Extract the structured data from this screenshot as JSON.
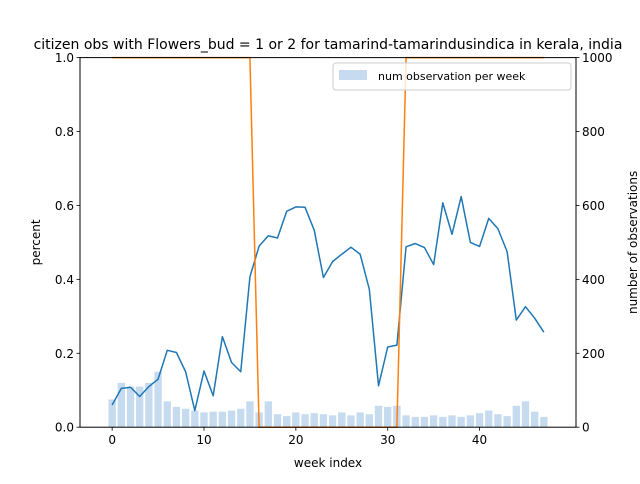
{
  "chart_data": {
    "type": "bar+line",
    "title": "citizen obs with Flowers_bud = 1 or 2 for tamarind-tamarindusindica in kerala, india",
    "xlabel": "week index",
    "ylabel": "percent",
    "y2label": "number of observations",
    "xlim": [
      -3.5,
      50.5
    ],
    "ylim": [
      0,
      1.0
    ],
    "y2lim": [
      0,
      1000
    ],
    "xticks": [
      0,
      10,
      20,
      30,
      40
    ],
    "yticks": [
      0.0,
      0.2,
      0.4,
      0.6,
      0.8,
      1.0
    ],
    "y2ticks": [
      0,
      200,
      400,
      600,
      800,
      1000
    ],
    "legend": {
      "placement": "top-right",
      "entries": [
        "num observation per week"
      ]
    },
    "grid": false,
    "colors": {
      "bars": "#c6dbef",
      "percent_line": "#1f77b4",
      "flag_line": "#ff7f0e"
    },
    "weeks": [
      0,
      1,
      2,
      3,
      4,
      5,
      6,
      7,
      8,
      9,
      10,
      11,
      12,
      13,
      14,
      15,
      16,
      17,
      18,
      19,
      20,
      21,
      22,
      23,
      24,
      25,
      26,
      27,
      28,
      29,
      30,
      31,
      32,
      33,
      34,
      35,
      36,
      37,
      38,
      39,
      40,
      41,
      42,
      43,
      44,
      45,
      46,
      47
    ],
    "series": [
      {
        "name": "num observation per week",
        "kind": "bar",
        "axis": "right",
        "values": [
          75,
          120,
          110,
          110,
          120,
          150,
          70,
          55,
          50,
          45,
          40,
          42,
          42,
          45,
          50,
          70,
          40,
          70,
          35,
          30,
          40,
          35,
          38,
          35,
          32,
          40,
          32,
          40,
          35,
          58,
          55,
          58,
          32,
          28,
          28,
          32,
          28,
          32,
          28,
          32,
          38,
          45,
          35,
          30,
          58,
          70,
          42,
          28
        ]
      },
      {
        "kind": "line",
        "axis": "left",
        "values": [
          0.06,
          0.105,
          0.108,
          0.083,
          0.11,
          0.13,
          0.208,
          0.202,
          0.15,
          0.045,
          0.152,
          0.085,
          0.245,
          0.175,
          0.15,
          0.407,
          0.49,
          0.518,
          0.512,
          0.584,
          0.596,
          0.595,
          0.533,
          0.405,
          0.448,
          0.468,
          0.487,
          0.468,
          0.373,
          0.112,
          0.217,
          0.222,
          0.488,
          0.497,
          0.486,
          0.44,
          0.607,
          0.522,
          0.624,
          0.5,
          0.489,
          0.565,
          0.537,
          0.475,
          0.29,
          0.326,
          0.295,
          0.257
        ]
      },
      {
        "kind": "line",
        "axis": "left",
        "values": [
          1,
          1,
          1,
          1,
          1,
          1,
          1,
          1,
          1,
          1,
          1,
          1,
          1,
          1,
          1,
          1,
          0,
          0,
          0,
          0,
          0,
          0,
          0,
          0,
          0,
          0,
          0,
          0,
          0,
          0,
          0,
          0,
          1,
          1,
          1,
          1,
          1,
          1,
          1,
          1,
          1,
          1,
          1,
          1,
          1,
          1,
          1,
          1
        ]
      }
    ]
  }
}
